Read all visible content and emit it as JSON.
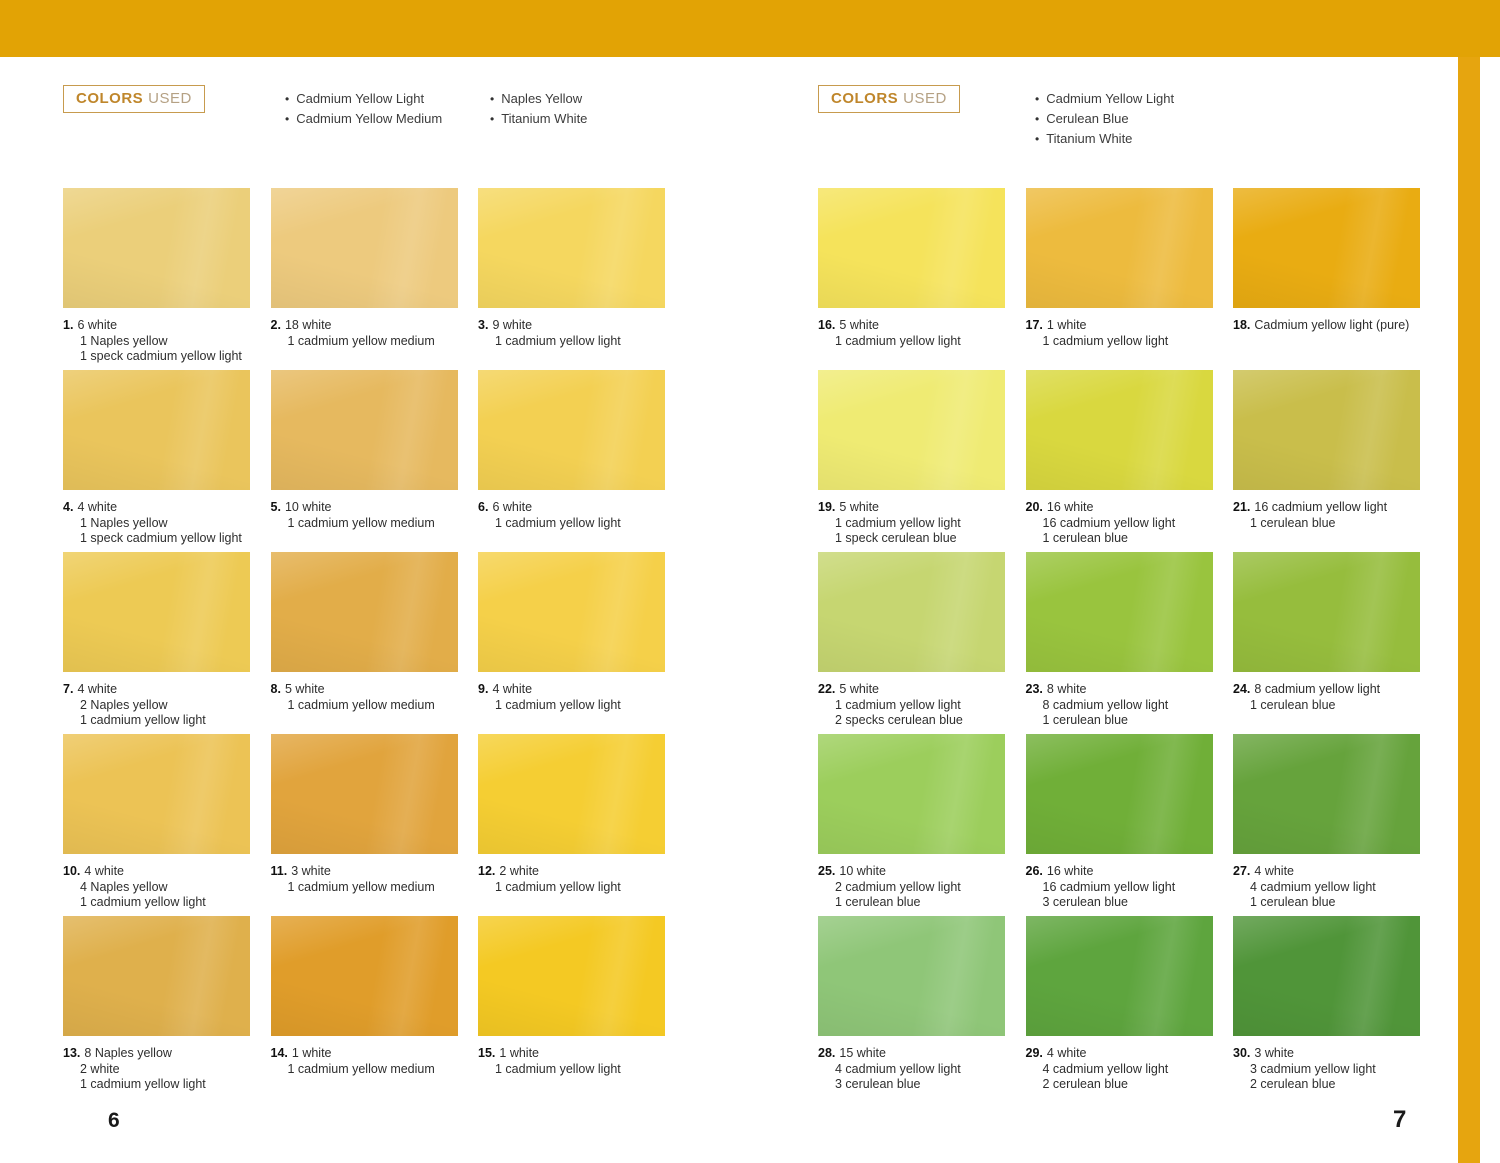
{
  "theme": {
    "top_bar_color": "#e2a305",
    "side_strip_color": "#e6a50f",
    "accent_gold": "#bf862b",
    "accent_gold_light": "#b5a184",
    "box_border_gold": "#c79b4e"
  },
  "pages": [
    {
      "page_number": "6",
      "header": {
        "box_label_bold": "COLORS",
        "box_label_light": "USED",
        "bullet_glyph": "•",
        "color_columns": [
          [
            "Cadmium Yellow Light",
            "Cadmium Yellow Medium"
          ],
          [
            "Naples Yellow",
            "Titanium White"
          ]
        ]
      },
      "swatches": [
        {
          "num": "1.",
          "color": "#ebcf7a",
          "lines": [
            "6 white",
            "1 Naples yellow",
            "1 speck cadmium yellow light"
          ]
        },
        {
          "num": "2.",
          "color": "#edca7e",
          "lines": [
            "18 white",
            "1 cadmium yellow medium"
          ]
        },
        {
          "num": "3.",
          "color": "#f5d75f",
          "lines": [
            "9 white",
            "1 cadmium yellow light"
          ]
        },
        {
          "num": "4.",
          "color": "#eac55c",
          "lines": [
            "4 white",
            "1 Naples yellow",
            "1 speck cadmium yellow light"
          ]
        },
        {
          "num": "5.",
          "color": "#e6b95f",
          "lines": [
            "10 white",
            "1 cadmium yellow medium"
          ]
        },
        {
          "num": "6.",
          "color": "#f3d052",
          "lines": [
            "6 white",
            "1 cadmium yellow light"
          ]
        },
        {
          "num": "7.",
          "color": "#edca54",
          "lines": [
            "4 white",
            "2 Naples yellow",
            "1 cadmium yellow light"
          ]
        },
        {
          "num": "8.",
          "color": "#e2ad49",
          "lines": [
            "5 white",
            "1 cadmium yellow medium"
          ]
        },
        {
          "num": "9.",
          "color": "#f5d049",
          "lines": [
            "4 white",
            "1 cadmium yellow light"
          ]
        },
        {
          "num": "10.",
          "color": "#ecc355",
          "lines": [
            "4 white",
            "4 Naples yellow",
            "1 cadmium yellow light"
          ]
        },
        {
          "num": "11.",
          "color": "#e1a43d",
          "lines": [
            "3 white",
            "1 cadmium yellow medium"
          ]
        },
        {
          "num": "12.",
          "color": "#f5ce33",
          "lines": [
            "2 white",
            "1 cadmium yellow light"
          ]
        },
        {
          "num": "13.",
          "color": "#dfb04c",
          "lines": [
            "8 Naples yellow",
            "2 white",
            "1 cadmium yellow light"
          ]
        },
        {
          "num": "14.",
          "color": "#e09d2a",
          "lines": [
            "1 white",
            "1 cadmium yellow medium"
          ]
        },
        {
          "num": "15.",
          "color": "#f4c923",
          "lines": [
            "1 white",
            "1 cadmium yellow light"
          ]
        }
      ]
    },
    {
      "page_number": "7",
      "header": {
        "box_label_bold": "COLORS",
        "box_label_light": "USED",
        "bullet_glyph": "•",
        "color_columns": [
          [
            "Cadmium Yellow Light",
            "Cerulean Blue",
            "Titanium White"
          ]
        ]
      },
      "swatches": [
        {
          "num": "16.",
          "color": "#f5e35b",
          "lines": [
            "5 white",
            "1 cadmium yellow light"
          ]
        },
        {
          "num": "17.",
          "color": "#edbb3e",
          "lines": [
            "1 white",
            "1 cadmium yellow light"
          ]
        },
        {
          "num": "18.",
          "color": "#e9ac12",
          "lines": [
            "Cadmium yellow light (pure)"
          ]
        },
        {
          "num": "19.",
          "color": "#efeb73",
          "lines": [
            "5 white",
            "1 cadmium yellow light",
            "1 speck cerulean blue"
          ]
        },
        {
          "num": "20.",
          "color": "#d9d83f",
          "lines": [
            "16 white",
            "16 cadmium yellow light",
            "1 cerulean blue"
          ]
        },
        {
          "num": "21.",
          "color": "#c9be4b",
          "lines": [
            "16 cadmium yellow light",
            "1 cerulean blue"
          ]
        },
        {
          "num": "22.",
          "color": "#c6d671",
          "lines": [
            "5 white",
            "1 cadmium yellow light",
            "2 specks cerulean blue"
          ]
        },
        {
          "num": "23.",
          "color": "#99c43e",
          "lines": [
            "8 white",
            "8 cadmium yellow light",
            "1 cerulean blue"
          ]
        },
        {
          "num": "24.",
          "color": "#96bd3d",
          "lines": [
            "8 cadmium yellow light",
            "1 cerulean blue"
          ]
        },
        {
          "num": "25.",
          "color": "#9cce5c",
          "lines": [
            "10 white",
            "2 cadmium yellow light",
            "1 cerulean blue"
          ]
        },
        {
          "num": "26.",
          "color": "#70af38",
          "lines": [
            "16 white",
            "16 cadmium yellow light",
            "3 cerulean blue"
          ]
        },
        {
          "num": "27.",
          "color": "#66a33c",
          "lines": [
            "4 white",
            "4 cadmium yellow light",
            "1 cerulean blue"
          ]
        },
        {
          "num": "28.",
          "color": "#8fc678",
          "lines": [
            "15 white",
            "4 cadmium yellow light",
            "3 cerulean blue"
          ]
        },
        {
          "num": "29.",
          "color": "#5ea53e",
          "lines": [
            "4 white",
            "4 cadmium yellow light",
            "2 cerulean blue"
          ]
        },
        {
          "num": "30.",
          "color": "#509539",
          "lines": [
            "3 white",
            "3 cadmium yellow light",
            "2 cerulean blue"
          ]
        }
      ]
    }
  ]
}
